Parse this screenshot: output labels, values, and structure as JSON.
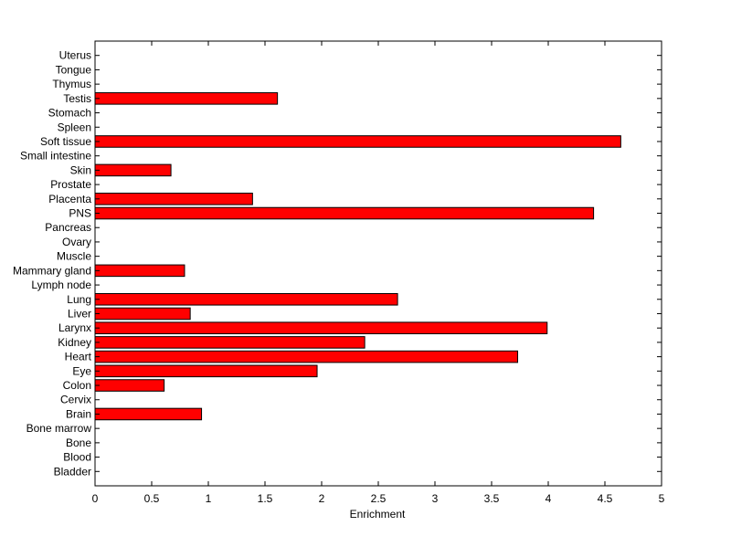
{
  "chart_data": {
    "type": "bar",
    "orientation": "horizontal",
    "categories": [
      "Bladder",
      "Blood",
      "Bone",
      "Bone marrow",
      "Brain",
      "Cervix",
      "Colon",
      "Eye",
      "Heart",
      "Kidney",
      "Larynx",
      "Liver",
      "Lung",
      "Lymph node",
      "Mammary gland",
      "Muscle",
      "Ovary",
      "Pancreas",
      "PNS",
      "Placenta",
      "Prostate",
      "Skin",
      "Small intestine",
      "Soft tissue",
      "Spleen",
      "Stomach",
      "Testis",
      "Thymus",
      "Tongue",
      "Uterus"
    ],
    "values": [
      0,
      0,
      0,
      0,
      0.94,
      0,
      0.61,
      1.96,
      3.73,
      2.38,
      3.99,
      0.84,
      2.67,
      0,
      0.79,
      0,
      0,
      0,
      4.4,
      1.39,
      0,
      0.67,
      0,
      4.64,
      0,
      0,
      1.61,
      0,
      0,
      0
    ],
    "xlabel": "Enrichment",
    "ylabel": "",
    "title": "",
    "xlim": [
      0,
      5
    ],
    "xticks": [
      "0",
      "0.5",
      "1",
      "1.5",
      "2",
      "2.5",
      "3",
      "3.5",
      "4",
      "4.5",
      "5"
    ],
    "bar_color": "#ff0000",
    "grid": false
  }
}
